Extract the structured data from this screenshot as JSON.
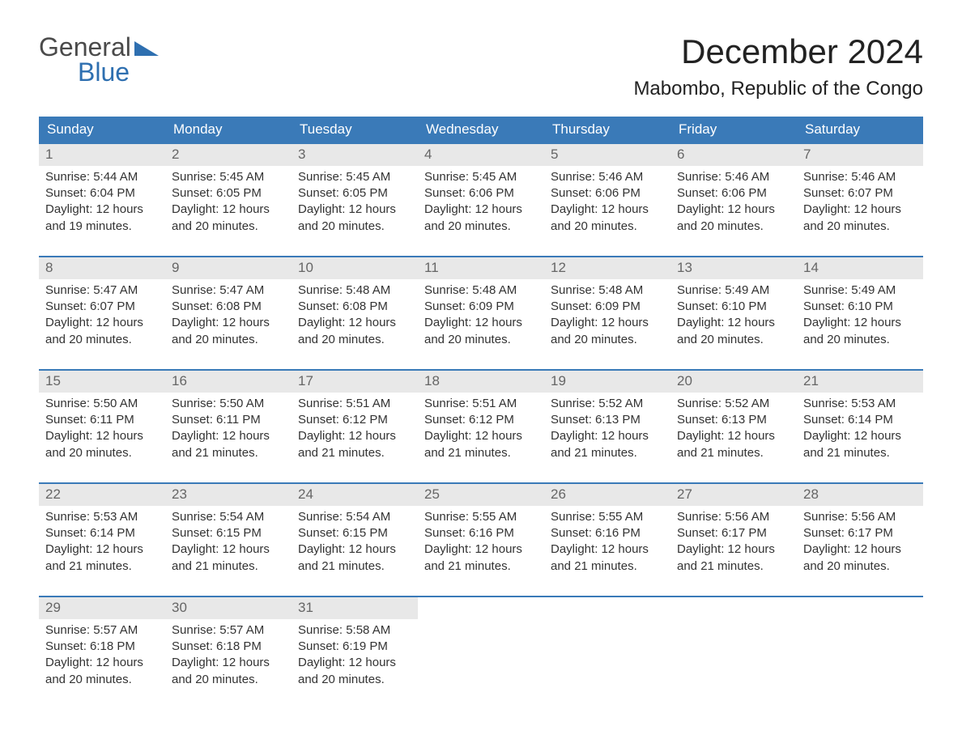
{
  "logo": {
    "word1": "General",
    "word2": "Blue",
    "shape_color": "#2e6fb0",
    "word1_color": "#4a4a4a",
    "word2_color": "#2e6fb0"
  },
  "title": "December 2024",
  "location": "Mabombo, Republic of the Congo",
  "colors": {
    "header_bg": "#3a7ab8",
    "header_text": "#ffffff",
    "daynum_bg": "#e8e8e8",
    "daynum_text": "#666666",
    "body_text": "#333333",
    "row_border": "#3a7ab8",
    "page_bg": "#ffffff"
  },
  "typography": {
    "title_fontsize": 42,
    "location_fontsize": 24,
    "dayheader_fontsize": 17,
    "cell_fontsize": 15
  },
  "day_headers": [
    "Sunday",
    "Monday",
    "Tuesday",
    "Wednesday",
    "Thursday",
    "Friday",
    "Saturday"
  ],
  "weeks": [
    [
      {
        "num": "1",
        "sunrise": "Sunrise: 5:44 AM",
        "sunset": "Sunset: 6:04 PM",
        "d1": "Daylight: 12 hours",
        "d2": "and 19 minutes."
      },
      {
        "num": "2",
        "sunrise": "Sunrise: 5:45 AM",
        "sunset": "Sunset: 6:05 PM",
        "d1": "Daylight: 12 hours",
        "d2": "and 20 minutes."
      },
      {
        "num": "3",
        "sunrise": "Sunrise: 5:45 AM",
        "sunset": "Sunset: 6:05 PM",
        "d1": "Daylight: 12 hours",
        "d2": "and 20 minutes."
      },
      {
        "num": "4",
        "sunrise": "Sunrise: 5:45 AM",
        "sunset": "Sunset: 6:06 PM",
        "d1": "Daylight: 12 hours",
        "d2": "and 20 minutes."
      },
      {
        "num": "5",
        "sunrise": "Sunrise: 5:46 AM",
        "sunset": "Sunset: 6:06 PM",
        "d1": "Daylight: 12 hours",
        "d2": "and 20 minutes."
      },
      {
        "num": "6",
        "sunrise": "Sunrise: 5:46 AM",
        "sunset": "Sunset: 6:06 PM",
        "d1": "Daylight: 12 hours",
        "d2": "and 20 minutes."
      },
      {
        "num": "7",
        "sunrise": "Sunrise: 5:46 AM",
        "sunset": "Sunset: 6:07 PM",
        "d1": "Daylight: 12 hours",
        "d2": "and 20 minutes."
      }
    ],
    [
      {
        "num": "8",
        "sunrise": "Sunrise: 5:47 AM",
        "sunset": "Sunset: 6:07 PM",
        "d1": "Daylight: 12 hours",
        "d2": "and 20 minutes."
      },
      {
        "num": "9",
        "sunrise": "Sunrise: 5:47 AM",
        "sunset": "Sunset: 6:08 PM",
        "d1": "Daylight: 12 hours",
        "d2": "and 20 minutes."
      },
      {
        "num": "10",
        "sunrise": "Sunrise: 5:48 AM",
        "sunset": "Sunset: 6:08 PM",
        "d1": "Daylight: 12 hours",
        "d2": "and 20 minutes."
      },
      {
        "num": "11",
        "sunrise": "Sunrise: 5:48 AM",
        "sunset": "Sunset: 6:09 PM",
        "d1": "Daylight: 12 hours",
        "d2": "and 20 minutes."
      },
      {
        "num": "12",
        "sunrise": "Sunrise: 5:48 AM",
        "sunset": "Sunset: 6:09 PM",
        "d1": "Daylight: 12 hours",
        "d2": "and 20 minutes."
      },
      {
        "num": "13",
        "sunrise": "Sunrise: 5:49 AM",
        "sunset": "Sunset: 6:10 PM",
        "d1": "Daylight: 12 hours",
        "d2": "and 20 minutes."
      },
      {
        "num": "14",
        "sunrise": "Sunrise: 5:49 AM",
        "sunset": "Sunset: 6:10 PM",
        "d1": "Daylight: 12 hours",
        "d2": "and 20 minutes."
      }
    ],
    [
      {
        "num": "15",
        "sunrise": "Sunrise: 5:50 AM",
        "sunset": "Sunset: 6:11 PM",
        "d1": "Daylight: 12 hours",
        "d2": "and 20 minutes."
      },
      {
        "num": "16",
        "sunrise": "Sunrise: 5:50 AM",
        "sunset": "Sunset: 6:11 PM",
        "d1": "Daylight: 12 hours",
        "d2": "and 21 minutes."
      },
      {
        "num": "17",
        "sunrise": "Sunrise: 5:51 AM",
        "sunset": "Sunset: 6:12 PM",
        "d1": "Daylight: 12 hours",
        "d2": "and 21 minutes."
      },
      {
        "num": "18",
        "sunrise": "Sunrise: 5:51 AM",
        "sunset": "Sunset: 6:12 PM",
        "d1": "Daylight: 12 hours",
        "d2": "and 21 minutes."
      },
      {
        "num": "19",
        "sunrise": "Sunrise: 5:52 AM",
        "sunset": "Sunset: 6:13 PM",
        "d1": "Daylight: 12 hours",
        "d2": "and 21 minutes."
      },
      {
        "num": "20",
        "sunrise": "Sunrise: 5:52 AM",
        "sunset": "Sunset: 6:13 PM",
        "d1": "Daylight: 12 hours",
        "d2": "and 21 minutes."
      },
      {
        "num": "21",
        "sunrise": "Sunrise: 5:53 AM",
        "sunset": "Sunset: 6:14 PM",
        "d1": "Daylight: 12 hours",
        "d2": "and 21 minutes."
      }
    ],
    [
      {
        "num": "22",
        "sunrise": "Sunrise: 5:53 AM",
        "sunset": "Sunset: 6:14 PM",
        "d1": "Daylight: 12 hours",
        "d2": "and 21 minutes."
      },
      {
        "num": "23",
        "sunrise": "Sunrise: 5:54 AM",
        "sunset": "Sunset: 6:15 PM",
        "d1": "Daylight: 12 hours",
        "d2": "and 21 minutes."
      },
      {
        "num": "24",
        "sunrise": "Sunrise: 5:54 AM",
        "sunset": "Sunset: 6:15 PM",
        "d1": "Daylight: 12 hours",
        "d2": "and 21 minutes."
      },
      {
        "num": "25",
        "sunrise": "Sunrise: 5:55 AM",
        "sunset": "Sunset: 6:16 PM",
        "d1": "Daylight: 12 hours",
        "d2": "and 21 minutes."
      },
      {
        "num": "26",
        "sunrise": "Sunrise: 5:55 AM",
        "sunset": "Sunset: 6:16 PM",
        "d1": "Daylight: 12 hours",
        "d2": "and 21 minutes."
      },
      {
        "num": "27",
        "sunrise": "Sunrise: 5:56 AM",
        "sunset": "Sunset: 6:17 PM",
        "d1": "Daylight: 12 hours",
        "d2": "and 21 minutes."
      },
      {
        "num": "28",
        "sunrise": "Sunrise: 5:56 AM",
        "sunset": "Sunset: 6:17 PM",
        "d1": "Daylight: 12 hours",
        "d2": "and 20 minutes."
      }
    ],
    [
      {
        "num": "29",
        "sunrise": "Sunrise: 5:57 AM",
        "sunset": "Sunset: 6:18 PM",
        "d1": "Daylight: 12 hours",
        "d2": "and 20 minutes."
      },
      {
        "num": "30",
        "sunrise": "Sunrise: 5:57 AM",
        "sunset": "Sunset: 6:18 PM",
        "d1": "Daylight: 12 hours",
        "d2": "and 20 minutes."
      },
      {
        "num": "31",
        "sunrise": "Sunrise: 5:58 AM",
        "sunset": "Sunset: 6:19 PM",
        "d1": "Daylight: 12 hours",
        "d2": "and 20 minutes."
      },
      null,
      null,
      null,
      null
    ]
  ]
}
